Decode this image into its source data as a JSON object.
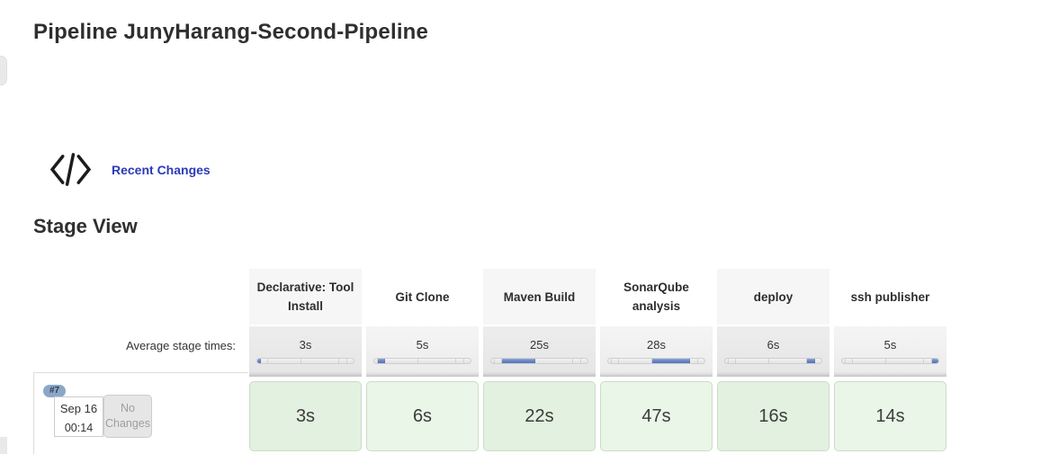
{
  "page": {
    "title": "Pipeline JunyHarang-Second-Pipeline"
  },
  "recent_changes": {
    "label": "Recent Changes",
    "icon": "code-icon"
  },
  "stage_view": {
    "heading": "Stage View",
    "avg_label": "Average stage times:"
  },
  "stages": [
    {
      "name": "Declarative: Tool Install",
      "avg": "3s",
      "build_time": "3s"
    },
    {
      "name": "Git Clone",
      "avg": "5s",
      "build_time": "6s"
    },
    {
      "name": "Maven Build",
      "avg": "25s",
      "build_time": "22s"
    },
    {
      "name": "SonarQube analysis",
      "avg": "28s",
      "build_time": "47s"
    },
    {
      "name": "deploy",
      "avg": "6s",
      "build_time": "16s"
    },
    {
      "name": "ssh publisher",
      "avg": "5s",
      "build_time": "14s"
    }
  ],
  "timeline_percents": [
    4.17,
    6.94,
    34.72,
    38.89,
    8.33,
    6.94
  ],
  "build": {
    "id": "#7",
    "date": "Sep 16",
    "time": "00:14",
    "changes": "No Changes",
    "status": "success"
  },
  "colors": {
    "link_blue": "#2a3ab8",
    "bar_blue": "#6282c3",
    "success_green_odd": "#e3f1e0",
    "success_green_even": "#eaf6e7",
    "badge_blue": "#8ba7c7",
    "avg_row_gray": "#e9e9e9"
  }
}
